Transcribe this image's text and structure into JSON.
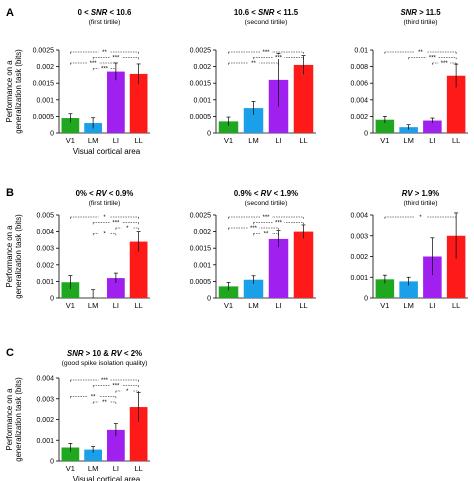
{
  "chart_data": [
    {
      "type": "bar",
      "panel_letter": "A",
      "title_parts": [
        {
          "t": "0 < ",
          "i": false
        },
        {
          "t": "SNR",
          "i": true
        },
        {
          "t": " < 10.6",
          "i": false
        }
      ],
      "subtitle": "(first tirtile)",
      "categories": [
        "V1",
        "LM",
        "LI",
        "LL"
      ],
      "colors": [
        "#1fa81f",
        "#1a9fe8",
        "#a020f0",
        "#ff1a1a"
      ],
      "values": [
        0.00045,
        0.0003,
        0.00185,
        0.00178
      ],
      "errors": [
        0.00013,
        0.00016,
        0.00026,
        0.0003
      ],
      "ylim": [
        0,
        0.0025
      ],
      "yticks": [
        "0",
        "0.0005",
        "0.001",
        "0.0015",
        "0.002",
        "0.0025"
      ],
      "ylabel": [
        "Performance on a",
        "generalization task (bits)"
      ],
      "xlabel": "Visual cortical area",
      "brackets": [
        {
          "from": "V1",
          "to": "LL",
          "label": "**"
        },
        {
          "from": "LM",
          "to": "LL",
          "label": "***"
        },
        {
          "from": "V1",
          "to": "LI",
          "label": "***"
        },
        {
          "from": "LM",
          "to": "LI",
          "label": "***"
        }
      ]
    },
    {
      "type": "bar",
      "panel_letter": "",
      "title_parts": [
        {
          "t": "10.6 < ",
          "i": false
        },
        {
          "t": "SNR",
          "i": true
        },
        {
          "t": " < 11.5",
          "i": false
        }
      ],
      "subtitle": "(second tirtile)",
      "categories": [
        "V1",
        "LM",
        "LI",
        "LL"
      ],
      "colors": [
        "#1fa81f",
        "#1a9fe8",
        "#a020f0",
        "#ff1a1a"
      ],
      "values": [
        0.00035,
        0.00075,
        0.0016,
        0.00205
      ],
      "errors": [
        0.00013,
        0.0002,
        0.0008,
        0.00028
      ],
      "ylim": [
        0,
        0.0025
      ],
      "yticks": [
        "0",
        "0.0005",
        "0.001",
        "0.0015",
        "0.002",
        "0.0025"
      ],
      "ylabel": [],
      "xlabel": "",
      "brackets": [
        {
          "from": "V1",
          "to": "LL",
          "label": "***"
        },
        {
          "from": "LM",
          "to": "LL",
          "label": "***"
        },
        {
          "from": "V1",
          "to": "LI",
          "label": "**"
        }
      ]
    },
    {
      "type": "bar",
      "panel_letter": "",
      "title_parts": [
        {
          "t": "SNR",
          "i": true
        },
        {
          "t": " > 11.5",
          "i": false
        }
      ],
      "subtitle": "(third tirtile)",
      "categories": [
        "V1",
        "LM",
        "LI",
        "LL"
      ],
      "colors": [
        "#1fa81f",
        "#1a9fe8",
        "#a020f0",
        "#ff1a1a"
      ],
      "values": [
        0.0016,
        0.0007,
        0.0015,
        0.0069
      ],
      "errors": [
        0.0004,
        0.0003,
        0.0003,
        0.0014
      ],
      "ylim": [
        0,
        0.01
      ],
      "yticks": [
        "0",
        "0.002",
        "0.004",
        "0.006",
        "0.008",
        "0.01"
      ],
      "ylabel": [],
      "xlabel": "",
      "brackets": [
        {
          "from": "V1",
          "to": "LL",
          "label": "**"
        },
        {
          "from": "LM",
          "to": "LL",
          "label": "***"
        },
        {
          "from": "LI",
          "to": "LL",
          "label": "***"
        }
      ]
    },
    {
      "type": "bar",
      "panel_letter": "B",
      "title_parts": [
        {
          "t": "0% < ",
          "i": false
        },
        {
          "t": "RV",
          "i": true
        },
        {
          "t": " < 0.9%",
          "i": false
        }
      ],
      "subtitle": "(first tirtile)",
      "categories": [
        "V1",
        "LM",
        "LI",
        "LL"
      ],
      "colors": [
        "#1fa81f",
        "#1a9fe8",
        "#a020f0",
        "#ff1a1a"
      ],
      "values": [
        0.00095,
        0.0,
        0.0012,
        0.0034
      ],
      "errors": [
        0.0004,
        0.0005,
        0.0003,
        0.0006
      ],
      "ylim": [
        0,
        0.005
      ],
      "yticks": [
        "0",
        "0.001",
        "0.002",
        "0.003",
        "0.004",
        "0.005"
      ],
      "ylabel": [
        "Performance on a",
        "generalization task (bits)"
      ],
      "xlabel": "",
      "brackets": [
        {
          "from": "V1",
          "to": "LL",
          "label": "*"
        },
        {
          "from": "LM",
          "to": "LL",
          "label": "***"
        },
        {
          "from": "LI",
          "to": "LL",
          "label": "*"
        },
        {
          "from": "LM",
          "to": "LI",
          "label": "*"
        }
      ]
    },
    {
      "type": "bar",
      "panel_letter": "",
      "title_parts": [
        {
          "t": "0.9% < ",
          "i": false
        },
        {
          "t": "RV",
          "i": true
        },
        {
          "t": " < 1.9%",
          "i": false
        }
      ],
      "subtitle": "(second tirtile)",
      "categories": [
        "V1",
        "LM",
        "LI",
        "LL"
      ],
      "colors": [
        "#1fa81f",
        "#1a9fe8",
        "#a020f0",
        "#ff1a1a"
      ],
      "values": [
        0.00035,
        0.00055,
        0.00178,
        0.002
      ],
      "errors": [
        0.00012,
        0.00012,
        0.00025,
        0.0002
      ],
      "ylim": [
        0,
        0.0025
      ],
      "yticks": [
        "0",
        "0.0005",
        "0.001",
        "0.0015",
        "0.002",
        "0.0025"
      ],
      "ylabel": [],
      "xlabel": "",
      "brackets": [
        {
          "from": "V1",
          "to": "LL",
          "label": "***"
        },
        {
          "from": "LM",
          "to": "LL",
          "label": "***"
        },
        {
          "from": "V1",
          "to": "LI",
          "label": "***"
        },
        {
          "from": "LM",
          "to": "LI",
          "label": "**"
        }
      ]
    },
    {
      "type": "bar",
      "panel_letter": "",
      "title_parts": [
        {
          "t": "RV",
          "i": true
        },
        {
          "t": " > 1.9%",
          "i": false
        }
      ],
      "subtitle": "(third tirtile)",
      "categories": [
        "V1",
        "LM",
        "LI",
        "LL"
      ],
      "colors": [
        "#1fa81f",
        "#1a9fe8",
        "#a020f0",
        "#ff1a1a"
      ],
      "values": [
        0.0009,
        0.0008,
        0.002,
        0.003
      ],
      "errors": [
        0.0002,
        0.0002,
        0.0009,
        0.0011
      ],
      "ylim": [
        0,
        0.004
      ],
      "yticks": [
        "0",
        "0.001",
        "0.002",
        "0.003",
        "0.004"
      ],
      "ylabel": [],
      "xlabel": "",
      "brackets": [
        {
          "from": "V1",
          "to": "LL",
          "label": "*"
        }
      ]
    },
    {
      "type": "bar",
      "panel_letter": "C",
      "title_parts": [
        {
          "t": "SNR",
          "i": true
        },
        {
          "t": " > 10 & ",
          "i": false
        },
        {
          "t": "RV",
          "i": true
        },
        {
          "t": " < 2%",
          "i": false
        }
      ],
      "subtitle": "(good spike isolation quality)",
      "categories": [
        "V1",
        "LM",
        "LI",
        "LL"
      ],
      "colors": [
        "#1fa81f",
        "#1a9fe8",
        "#a020f0",
        "#ff1a1a"
      ],
      "values": [
        0.00065,
        0.00055,
        0.0015,
        0.0026
      ],
      "errors": [
        0.0002,
        0.00015,
        0.0003,
        0.0007
      ],
      "ylim": [
        0,
        0.004
      ],
      "yticks": [
        "0",
        "0.001",
        "0.002",
        "0.003",
        "0.004"
      ],
      "ylabel": [
        "Performance on a",
        "generalization task (bits)"
      ],
      "xlabel": "Visual cortical area",
      "brackets": [
        {
          "from": "V1",
          "to": "LL",
          "label": "***"
        },
        {
          "from": "LM",
          "to": "LL",
          "label": "***"
        },
        {
          "from": "LI",
          "to": "LL",
          "label": "*"
        },
        {
          "from": "V1",
          "to": "LI",
          "label": "**"
        },
        {
          "from": "LM",
          "to": "LI",
          "label": "**"
        }
      ]
    }
  ]
}
